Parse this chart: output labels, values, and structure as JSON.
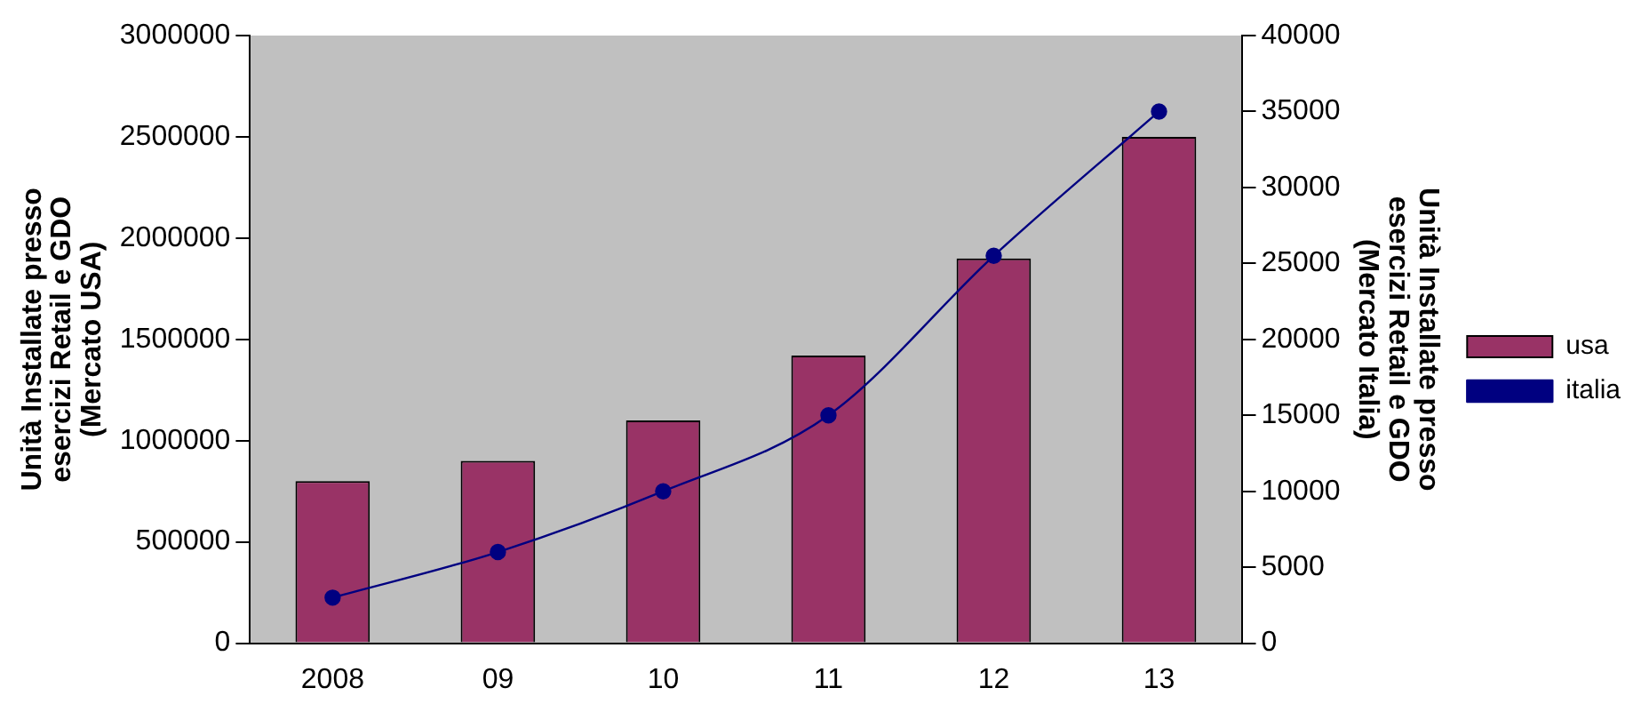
{
  "chart_data": {
    "type": "bar",
    "categories": [
      "2008",
      "09",
      "10",
      "11",
      "12",
      "13"
    ],
    "series": [
      {
        "name": "usa",
        "color": "#993366",
        "values": [
          800000,
          900000,
          1100000,
          1420000,
          1900000,
          2500000
        ]
      },
      {
        "name": "italia",
        "type": "line",
        "axis": "y2",
        "color": "#000080",
        "values": [
          3000,
          6000,
          10000,
          15000,
          25500,
          35000
        ]
      }
    ],
    "ylabel": "Unità Installate presso\nesercizi Retail e GDO\n(Mercato USA)",
    "y2label": "Unità Installate presso\nesercizi Retail e GDO\n(Mercato Italia)",
    "ylim": [
      0,
      3000000
    ],
    "yticks": [
      0,
      500000,
      1000000,
      1500000,
      2000000,
      2500000,
      3000000
    ],
    "y2lim": [
      0,
      40000
    ],
    "y2ticks": [
      0,
      5000,
      10000,
      15000,
      20000,
      25000,
      30000,
      35000,
      40000
    ],
    "grid": false,
    "legend": "right",
    "marker": "circle",
    "line_style": "solid"
  }
}
